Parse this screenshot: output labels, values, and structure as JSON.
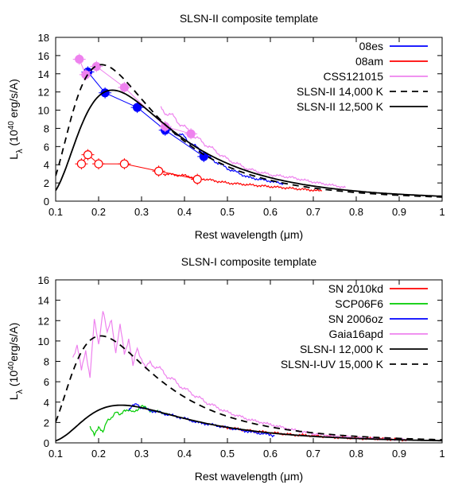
{
  "chart_data": [
    {
      "type": "line",
      "title": "SLSN-II composite template",
      "xlabel": "Rest wavelength (μm)",
      "ylabel_main": "L",
      "ylabel_sub": "λ",
      "ylabel_rest": "(10",
      "ylabel_exp": "40",
      "ylabel_end": " erg/s/A)",
      "xlim": [
        0.1,
        1.0
      ],
      "ylim": [
        0,
        18
      ],
      "xticks": [
        "0.1",
        "0.2",
        "0.3",
        "0.4",
        "0.5",
        "0.6",
        "0.7",
        "0.8",
        "0.9",
        "1"
      ],
      "yticks": [
        "0",
        "2",
        "4",
        "6",
        "8",
        "10",
        "12",
        "14",
        "16",
        "18"
      ],
      "legend_position": "top-right",
      "series": [
        {
          "name": "08es",
          "color": "#0000ff",
          "kind": "spectrum+photometry",
          "spectrum": [
            [
              0.35,
              7.6
            ],
            [
              0.37,
              7.8
            ],
            [
              0.4,
              7.0
            ],
            [
              0.43,
              5.8
            ],
            [
              0.46,
              4.7
            ],
            [
              0.5,
              3.6
            ],
            [
              0.55,
              2.6
            ],
            [
              0.6,
              2.2
            ],
            [
              0.63,
              1.9
            ]
          ],
          "points": [
            [
              0.175,
              14.2
            ],
            [
              0.215,
              11.9
            ],
            [
              0.29,
              10.3
            ],
            [
              0.355,
              7.8
            ],
            [
              0.445,
              4.9
            ]
          ],
          "markers": "filled-circle"
        },
        {
          "name": "08am",
          "color": "#ff0000",
          "kind": "spectrum+photometry",
          "spectrum": [
            [
              0.35,
              3.0
            ],
            [
              0.4,
              2.8
            ],
            [
              0.45,
              2.4
            ],
            [
              0.5,
              2.0
            ],
            [
              0.55,
              1.8
            ],
            [
              0.6,
              1.6
            ],
            [
              0.65,
              1.4
            ],
            [
              0.7,
              1.2
            ],
            [
              0.72,
              1.1
            ]
          ],
          "points": [
            [
              0.16,
              4.1
            ],
            [
              0.175,
              5.1
            ],
            [
              0.2,
              4.1
            ],
            [
              0.26,
              4.1
            ],
            [
              0.34,
              3.3
            ],
            [
              0.43,
              2.4
            ]
          ],
          "markers": "open-circle"
        },
        {
          "name": "CSS121015",
          "color": "#ee82ee",
          "kind": "spectrum+photometry",
          "spectrum": [
            [
              0.345,
              10.2
            ],
            [
              0.38,
              9.0
            ],
            [
              0.42,
              7.2
            ],
            [
              0.46,
              5.9
            ],
            [
              0.5,
              4.6
            ],
            [
              0.55,
              3.5
            ],
            [
              0.6,
              2.9
            ],
            [
              0.65,
              2.6
            ],
            [
              0.7,
              2.1
            ],
            [
              0.75,
              1.7
            ],
            [
              0.775,
              1.5
            ]
          ],
          "points": [
            [
              0.155,
              15.6
            ],
            [
              0.17,
              13.9
            ],
            [
              0.195,
              14.8
            ],
            [
              0.26,
              12.5
            ],
            [
              0.355,
              8.2
            ],
            [
              0.415,
              7.4
            ]
          ],
          "markers": "filled-circle"
        },
        {
          "name": "SLSN-II 14,000 K",
          "color": "#000000",
          "dash": "8,6",
          "model": {
            "T": 14000,
            "peak_x": 0.207,
            "peak_y": 15.0
          }
        },
        {
          "name": "SLSN-II 12,500 K",
          "color": "#000000",
          "dash": "",
          "model": {
            "T": 12500,
            "peak_x": 0.232,
            "peak_y": 12.2
          }
        }
      ]
    },
    {
      "type": "line",
      "title": "SLSN-I composite template",
      "xlabel": "Rest wavelength (μm)",
      "ylabel_main": "L",
      "ylabel_sub": "λ",
      "ylabel_rest": "(10",
      "ylabel_exp": "40",
      "ylabel_end": "erg/s/A)",
      "xlim": [
        0.1,
        1.0
      ],
      "ylim": [
        0,
        16
      ],
      "xticks": [
        "0.1",
        "0.2",
        "0.3",
        "0.4",
        "0.5",
        "0.6",
        "0.7",
        "0.8",
        "0.9",
        "1"
      ],
      "yticks": [
        "0",
        "2",
        "4",
        "6",
        "8",
        "10",
        "12",
        "14",
        "16"
      ],
      "legend_position": "top-right",
      "series": [
        {
          "name": "SN 2010kd",
          "color": "#ff0000",
          "kind": "spectrum",
          "spectrum": [
            [
              0.48,
              1.6
            ],
            [
              0.55,
              1.2
            ],
            [
              0.6,
              1.0
            ],
            [
              0.65,
              0.8
            ],
            [
              0.7,
              0.7
            ],
            [
              0.75,
              0.55
            ],
            [
              0.8,
              0.45
            ],
            [
              0.85,
              0.4
            ],
            [
              0.92,
              0.3
            ]
          ]
        },
        {
          "name": "SCP06F6",
          "color": "#00cc00",
          "kind": "spectrum",
          "spectrum": [
            [
              0.18,
              1.5
            ],
            [
              0.19,
              0.8
            ],
            [
              0.2,
              1.6
            ],
            [
              0.21,
              1.0
            ],
            [
              0.22,
              2.2
            ],
            [
              0.23,
              2.5
            ],
            [
              0.24,
              3.0
            ],
            [
              0.25,
              2.7
            ],
            [
              0.26,
              3.3
            ],
            [
              0.28,
              3.0
            ],
            [
              0.3,
              3.6
            ],
            [
              0.32,
              3.2
            ],
            [
              0.34,
              3.0
            ],
            [
              0.36,
              2.9
            ]
          ]
        },
        {
          "name": "SN 2006oz",
          "color": "#0000ff",
          "kind": "spectrum",
          "spectrum": [
            [
              0.27,
              3.2
            ],
            [
              0.28,
              3.6
            ],
            [
              0.29,
              3.9
            ],
            [
              0.3,
              3.4
            ],
            [
              0.32,
              3.2
            ],
            [
              0.35,
              2.9
            ],
            [
              0.38,
              2.6
            ],
            [
              0.4,
              2.4
            ],
            [
              0.43,
              2.0
            ],
            [
              0.46,
              1.8
            ],
            [
              0.5,
              1.5
            ],
            [
              0.55,
              1.1
            ],
            [
              0.6,
              0.8
            ],
            [
              0.61,
              0.7
            ]
          ]
        },
        {
          "name": "Gaia16apd",
          "color": "#ee82ee",
          "kind": "spectrum",
          "spectrum": [
            [
              0.14,
              8.6
            ],
            [
              0.15,
              9.6
            ],
            [
              0.16,
              7.0
            ],
            [
              0.17,
              9.2
            ],
            [
              0.18,
              6.5
            ],
            [
              0.19,
              11.8
            ],
            [
              0.2,
              9.8
            ],
            [
              0.21,
              13.2
            ],
            [
              0.22,
              10.5
            ],
            [
              0.23,
              12.2
            ],
            [
              0.24,
              9.0
            ],
            [
              0.25,
              11.3
            ],
            [
              0.26,
              8.8
            ],
            [
              0.27,
              10.4
            ],
            [
              0.28,
              7.4
            ],
            [
              0.29,
              9.3
            ],
            [
              0.3,
              8.4
            ],
            [
              0.31,
              7.2
            ],
            [
              0.32,
              7.9
            ],
            [
              0.34,
              7.3
            ],
            [
              0.36,
              6.6
            ],
            [
              0.4,
              5.3
            ],
            [
              0.45,
              4.0
            ],
            [
              0.5,
              3.0
            ],
            [
              0.55,
              2.3
            ],
            [
              0.6,
              1.8
            ],
            [
              0.65,
              1.3
            ],
            [
              0.7,
              0.9
            ],
            [
              0.75,
              0.65
            ],
            [
              0.8,
              0.5
            ],
            [
              0.85,
              0.42
            ],
            [
              0.92,
              0.3
            ]
          ]
        },
        {
          "name": "SLSN-I 12,000 K",
          "color": "#000000",
          "dash": "",
          "model": {
            "T": 12000,
            "peak_x": 0.252,
            "peak_y": 3.7
          }
        },
        {
          "name": "SLSN-I-UV 15,000 K",
          "color": "#000000",
          "dash": "8,6",
          "model": {
            "T": 15000,
            "peak_x": 0.205,
            "peak_y": 10.5
          }
        }
      ]
    }
  ]
}
